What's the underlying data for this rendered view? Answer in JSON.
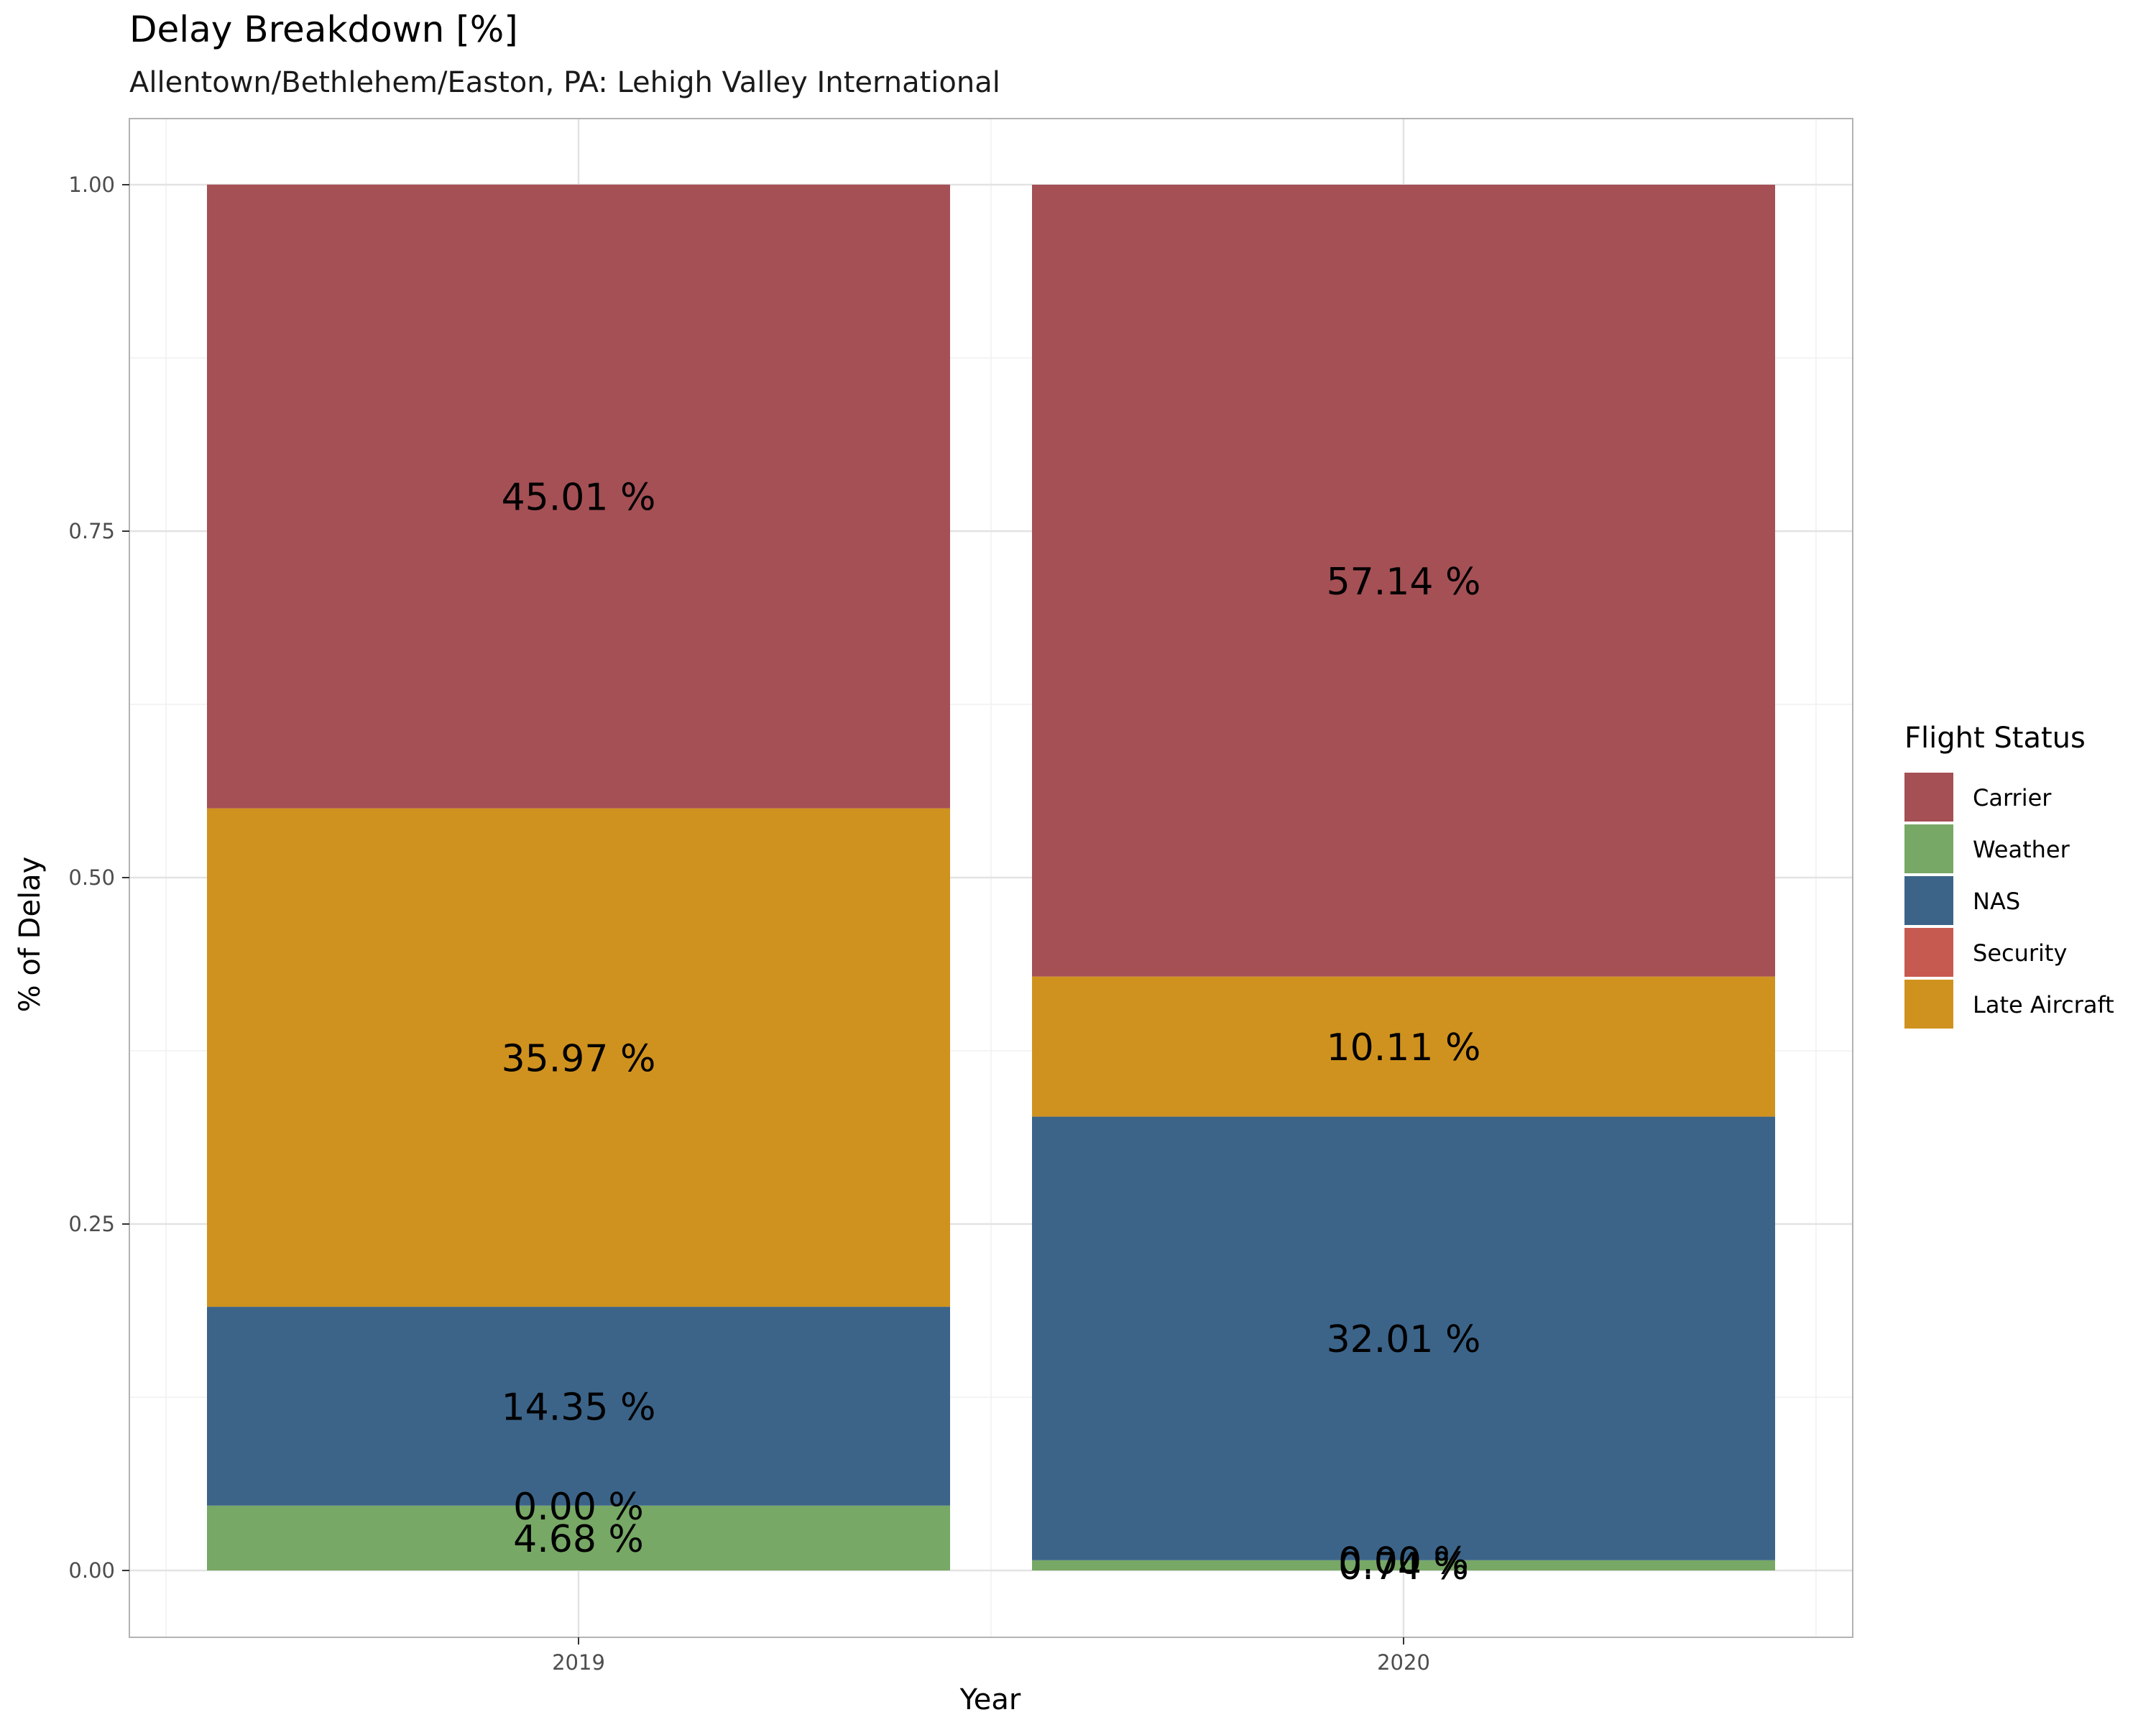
{
  "chart_data": {
    "type": "bar",
    "stacked": true,
    "title": "Delay Breakdown [%]",
    "subtitle": "Allentown/Bethlehem/Easton, PA: Lehigh Valley International",
    "xlabel": "Year",
    "ylabel": "% of Delay",
    "ylim": [
      0,
      1
    ],
    "yticks": [
      "0.00",
      "0.25",
      "0.50",
      "0.75",
      "1.00"
    ],
    "ytick_values": [
      0,
      0.25,
      0.5,
      0.75,
      1.0
    ],
    "categories": [
      "2019",
      "2020"
    ],
    "legend_title": "Flight Status",
    "legend": [
      "Carrier",
      "Weather",
      "NAS",
      "Security",
      "Late Aircraft"
    ],
    "colors": {
      "Carrier": "#A55055",
      "Weather": "#77A866",
      "NAS": "#3C6489",
      "Security": "#C75A50",
      "Late Aircraft": "#D0921E"
    },
    "stack_order_bottom_to_top": [
      "Weather",
      "Security",
      "NAS",
      "Late Aircraft",
      "Carrier"
    ],
    "series": [
      {
        "name": "Carrier",
        "values": [
          0.4501,
          0.5714
        ],
        "labels": [
          "45.01 %",
          "57.14 %"
        ]
      },
      {
        "name": "Weather",
        "values": [
          0.0468,
          0.0074
        ],
        "labels": [
          "4.68 %",
          "0.74 %"
        ]
      },
      {
        "name": "NAS",
        "values": [
          0.1435,
          0.3201
        ],
        "labels": [
          "14.35 %",
          "32.01 %"
        ]
      },
      {
        "name": "Security",
        "values": [
          0.0,
          0.0
        ],
        "labels": [
          "0.00 %",
          "0.00 %"
        ]
      },
      {
        "name": "Late Aircraft",
        "values": [
          0.3597,
          0.1011
        ],
        "labels": [
          "35.97 %",
          "10.11 %"
        ]
      }
    ]
  }
}
